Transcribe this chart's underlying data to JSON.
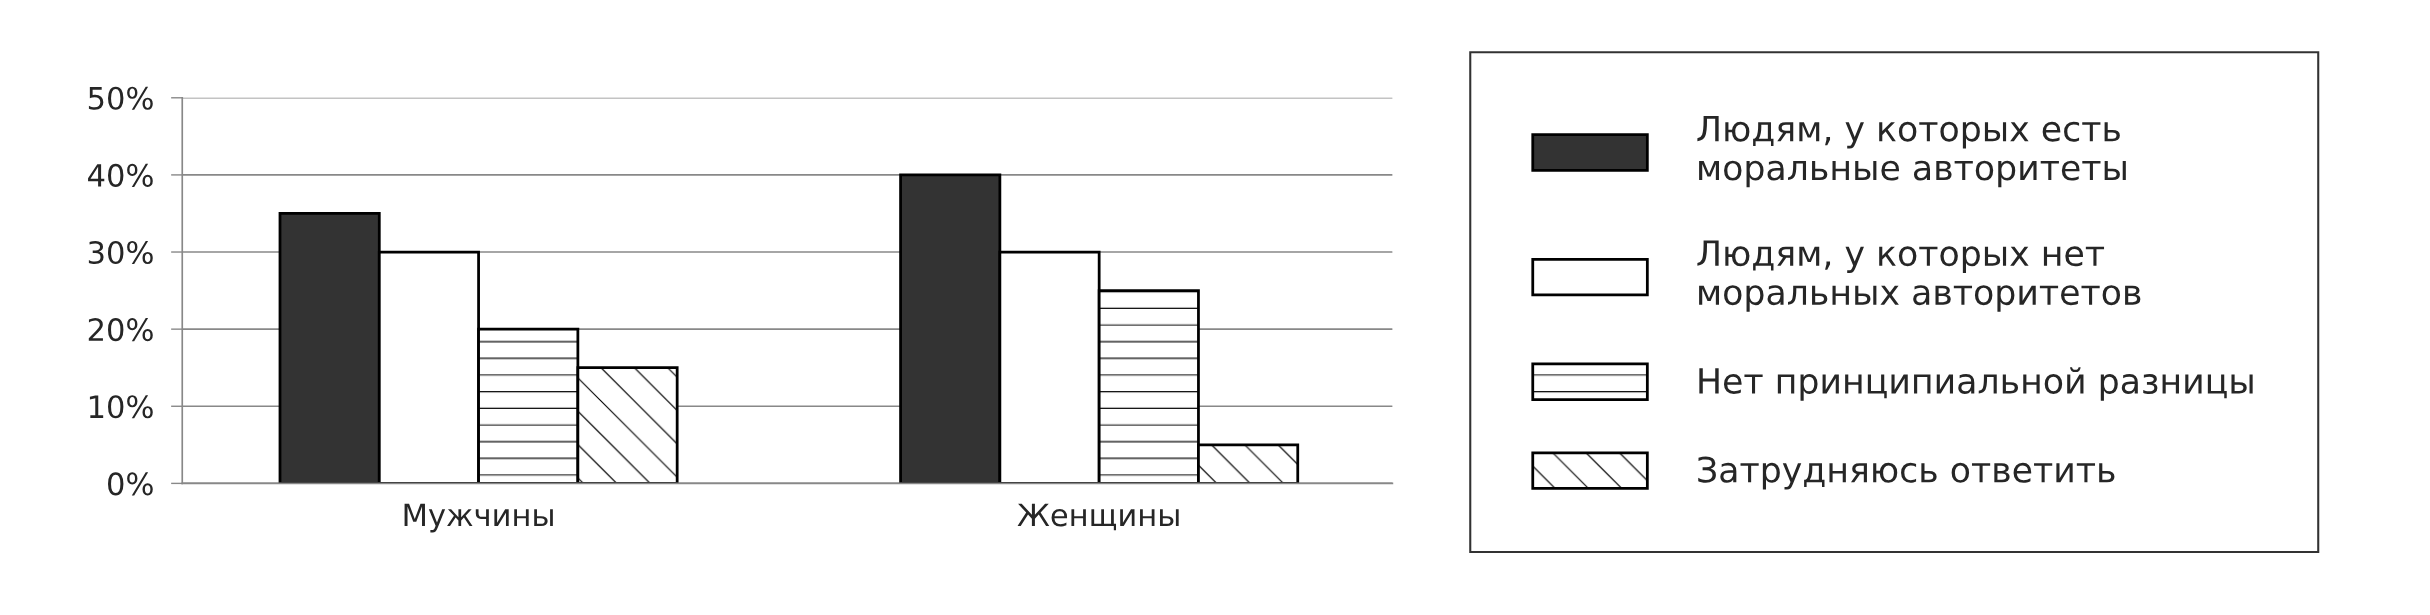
{
  "chart_data": {
    "type": "bar",
    "categories": [
      "Мужчины",
      "Женщины"
    ],
    "series": [
      {
        "name": "Людям, у которых есть\nморальные авторитеты",
        "color": "#333333",
        "values": [
          35,
          40
        ]
      },
      {
        "name": "Людям, у которых нет\nморальных авторитетов",
        "color": "#ffffff",
        "values": [
          30,
          30
        ]
      },
      {
        "name": "Нет принципиальной разницы",
        "color": "#ffffff",
        "values": [
          20,
          25
        ]
      },
      {
        "name": "Затрудняюсь ответить",
        "color": "#ffffff",
        "values": [
          15,
          5
        ]
      }
    ],
    "ylim": [
      0,
      50
    ],
    "yticks": [
      {
        "value": 0,
        "label": "0%"
      },
      {
        "value": 10,
        "label": "10%"
      },
      {
        "value": 20,
        "label": "20%"
      },
      {
        "value": 30,
        "label": "30%"
      },
      {
        "value": 40,
        "label": "40%"
      },
      {
        "value": 50,
        "label": "50%"
      }
    ],
    "grid": "y",
    "legend": "right"
  }
}
